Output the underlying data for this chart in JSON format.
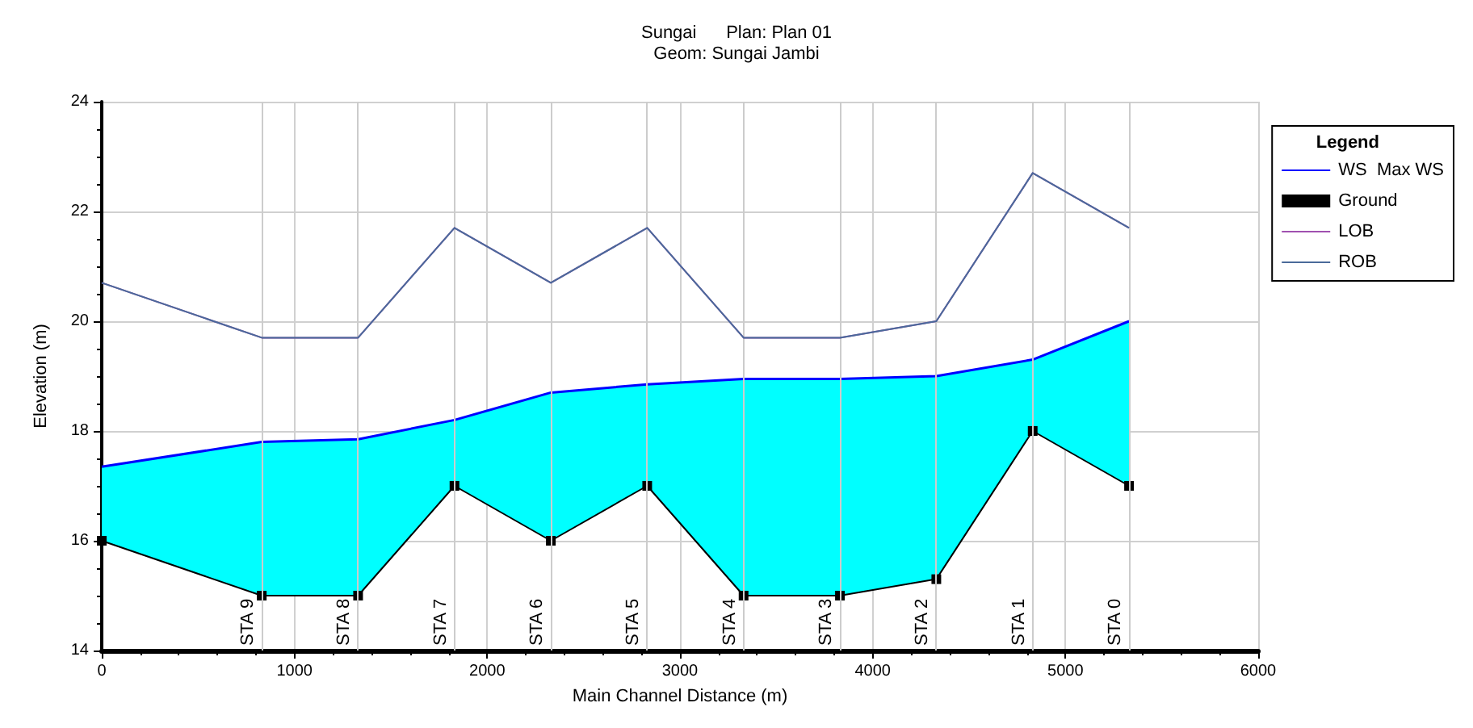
{
  "chart_data": {
    "type": "line",
    "title": "Sungai      Plan: Plan 01",
    "subtitle": "Geom: Sungai Jambi",
    "xlabel": "Main Channel Distance (m)",
    "ylabel": "Elevation (m)",
    "legend_title": "Legend",
    "x": [
      0,
      830,
      1330,
      1830,
      2330,
      2830,
      3330,
      3830,
      4330,
      4830,
      5330
    ],
    "series": [
      {
        "name": "WS  Max WS",
        "type": "area",
        "color": "#00ffff",
        "values": [
          17.35,
          17.8,
          17.85,
          18.2,
          18.7,
          18.85,
          18.95,
          18.95,
          19.0,
          19.3,
          20.0
        ]
      },
      {
        "name": "Ground",
        "color": "#000000",
        "marker": "square",
        "values": [
          16,
          15,
          15,
          17,
          16,
          17,
          15,
          15,
          15.3,
          18,
          17
        ]
      },
      {
        "name": "LOB",
        "color": "#a050b0",
        "values": [
          20.7,
          19.7,
          19.7,
          21.7,
          20.7,
          21.7,
          19.7,
          19.7,
          20.0,
          22.7,
          21.7
        ]
      },
      {
        "name": "ROB",
        "color": "#4a6a9a",
        "values": [
          20.7,
          19.7,
          19.7,
          21.7,
          20.7,
          21.7,
          19.7,
          19.7,
          20.0,
          22.7,
          21.7
        ]
      }
    ],
    "ref_lines": [
      {
        "axis": "x",
        "value": 830,
        "label": "STA 9",
        "color": "#cccccc"
      },
      {
        "axis": "x",
        "value": 1330,
        "label": "STA 8",
        "color": "#cccccc"
      },
      {
        "axis": "x",
        "value": 1830,
        "label": "STA 7",
        "color": "#cccccc"
      },
      {
        "axis": "x",
        "value": 2330,
        "label": "STA 6",
        "color": "#cccccc"
      },
      {
        "axis": "x",
        "value": 2830,
        "label": "STA 5",
        "color": "#cccccc"
      },
      {
        "axis": "x",
        "value": 3330,
        "label": "STA 4",
        "color": "#cccccc"
      },
      {
        "axis": "x",
        "value": 3830,
        "label": "STA 3",
        "color": "#cccccc"
      },
      {
        "axis": "x",
        "value": 4330,
        "label": "STA 2",
        "color": "#cccccc"
      },
      {
        "axis": "x",
        "value": 4830,
        "label": "STA 1",
        "color": "#cccccc"
      },
      {
        "axis": "x",
        "value": 5330,
        "label": "STA 0",
        "color": "#cccccc"
      }
    ],
    "xlim": [
      0,
      6000
    ],
    "xticks": [
      0,
      1000,
      2000,
      3000,
      4000,
      5000,
      6000
    ],
    "ylim": [
      14,
      24
    ],
    "yticks": [
      14,
      16,
      18,
      20,
      22,
      24
    ],
    "grid": true,
    "legend": "right",
    "marker": "none",
    "line_style": "solid"
  }
}
